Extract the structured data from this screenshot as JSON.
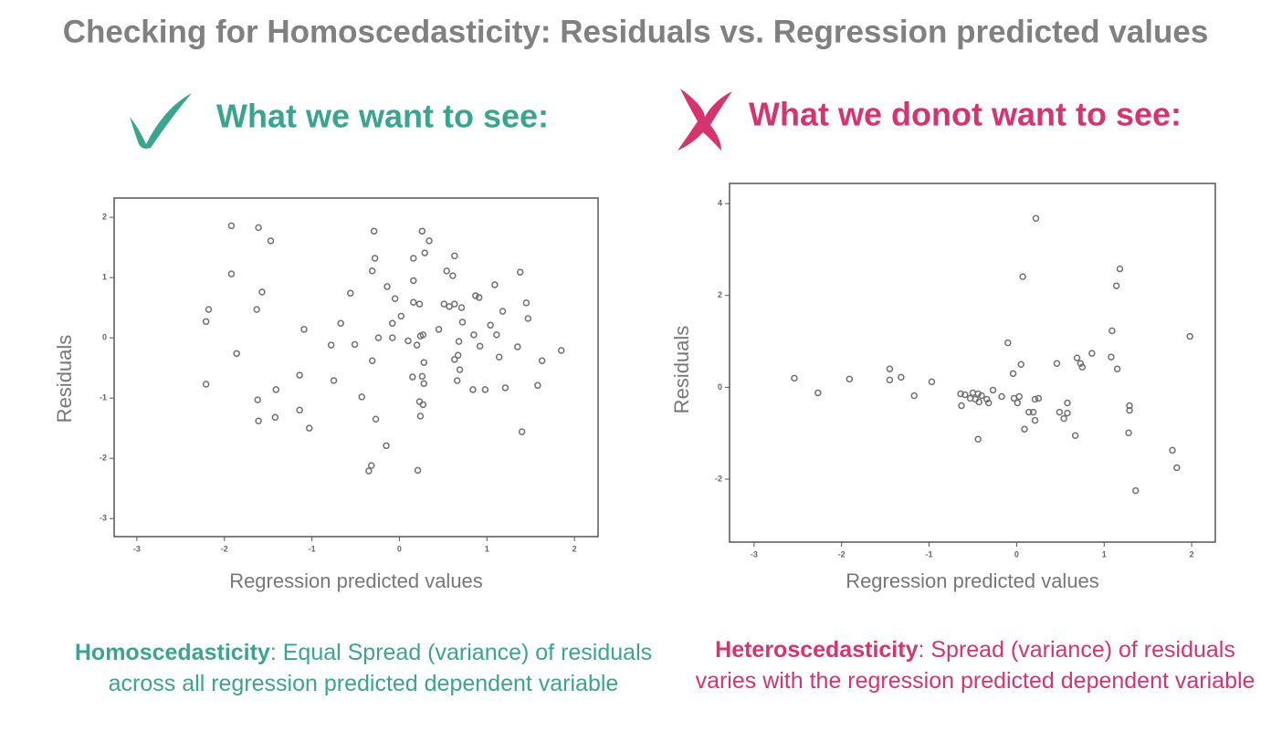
{
  "title": "Checking for Homoscedasticity: Residuals vs. Regression predicted values",
  "chart_data": [
    {
      "type": "scatter",
      "heading": "What we want to see:",
      "color": "#3aa58f",
      "marker_color": "#707070",
      "xlabel": "Regression predicted values",
      "ylabel": "Residuals",
      "caption_term": "Homoscedasticity",
      "caption_text": ": Equal Spread (variance) of residuals across all regression predicted dependent variable",
      "xlim": [
        -3.26,
        2.27
      ],
      "ylim": [
        -3.3,
        2.32
      ],
      "xticks": [
        -3,
        -2,
        -1,
        0,
        1,
        2
      ],
      "yticks": [
        -3,
        -2,
        -1,
        0,
        1,
        2
      ],
      "x": [
        -1.92,
        -1.61,
        -1.47,
        -1.92,
        -1.57,
        -2.18,
        -1.63,
        -2.21,
        -1.86,
        -2.21,
        -1.62,
        -1.41,
        -1.61,
        -1.42,
        -1.14,
        -1.09,
        -1.14,
        -1.03,
        -0.78,
        -0.75,
        -0.67,
        -0.56,
        -0.51,
        -0.43,
        -0.29,
        -0.28,
        -0.31,
        -0.31,
        -0.27,
        -0.24,
        -0.35,
        -0.32,
        -0.15,
        -0.14,
        -0.08,
        -0.05,
        0.02,
        -0.08,
        0.1,
        0.16,
        0.16,
        0.16,
        0.23,
        0.2,
        0.15,
        0.24,
        0.26,
        0.29,
        0.34,
        0.28,
        0.26,
        0.28,
        0.23,
        0.27,
        0.24,
        0.21,
        0.27,
        0.45,
        0.54,
        0.51,
        0.57,
        0.61,
        0.63,
        0.63,
        0.63,
        0.67,
        0.69,
        0.66,
        0.68,
        0.72,
        0.71,
        0.87,
        0.91,
        0.84,
        0.85,
        0.92,
        0.98,
        1.04,
        1.09,
        1.11,
        1.14,
        1.18,
        1.21,
        1.35,
        1.38,
        1.4,
        1.45,
        1.47,
        1.58,
        1.63,
        1.85
      ],
      "y": [
        1.86,
        1.83,
        1.61,
        1.06,
        0.76,
        0.47,
        0.47,
        0.27,
        -0.26,
        -0.77,
        -1.03,
        -0.86,
        -1.38,
        -1.32,
        -0.62,
        0.14,
        -1.2,
        -1.5,
        -0.12,
        -0.71,
        0.24,
        0.74,
        -0.11,
        -0.98,
        1.77,
        1.32,
        1.11,
        -0.38,
        -1.35,
        0.0,
        -2.21,
        -2.12,
        -1.79,
        0.85,
        0.24,
        0.65,
        0.36,
        0.0,
        -0.05,
        1.32,
        0.95,
        0.59,
        0.56,
        -0.12,
        -0.65,
        0.03,
        1.77,
        1.41,
        1.61,
        -0.41,
        -0.64,
        -0.76,
        -1.06,
        -1.11,
        -1.3,
        -2.2,
        0.05,
        0.14,
        1.11,
        0.56,
        0.52,
        1.03,
        0.56,
        1.36,
        -0.36,
        -0.29,
        -0.53,
        -0.71,
        -0.06,
        0.26,
        0.5,
        0.7,
        0.67,
        -0.86,
        0.05,
        -0.14,
        -0.86,
        0.21,
        0.88,
        0.05,
        -0.32,
        0.44,
        -0.83,
        -0.15,
        1.09,
        -1.56,
        0.58,
        0.32,
        -0.79,
        -0.38,
        -0.21
      ]
    },
    {
      "type": "scatter",
      "heading": "What we donot want to see:",
      "color": "#d6336f",
      "marker_color": "#707070",
      "xlabel": "Regression predicted values",
      "ylabel": "Residuals",
      "caption_term": "Heteroscedasticity",
      "caption_text": ": Spread (variance) of residuals varies with the regression predicted dependent variable",
      "xlim": [
        -3.28,
        2.27
      ],
      "ylim": [
        -3.37,
        4.44
      ],
      "xticks": [
        -3,
        -2,
        -1,
        0,
        1,
        2
      ],
      "yticks": [
        -2,
        0,
        2,
        4
      ],
      "x": [
        -2.54,
        -2.27,
        -1.91,
        -1.45,
        -1.45,
        -1.32,
        -1.17,
        -0.97,
        -0.64,
        -0.63,
        -0.59,
        -0.53,
        -0.5,
        -0.47,
        -0.44,
        -0.44,
        -0.4,
        -0.43,
        -0.34,
        -0.32,
        -0.27,
        -0.17,
        -0.1,
        -0.04,
        -0.03,
        0.01,
        0.03,
        0.05,
        0.07,
        0.09,
        0.14,
        0.19,
        0.21,
        0.21,
        0.25,
        0.22,
        0.46,
        0.49,
        0.54,
        0.58,
        0.58,
        0.67,
        0.69,
        0.73,
        0.75,
        0.86,
        1.08,
        1.09,
        1.14,
        1.18,
        1.15,
        1.29,
        1.29,
        1.28,
        1.36,
        1.78,
        1.83,
        1.98
      ],
      "y": [
        0.2,
        -0.12,
        0.18,
        0.4,
        0.16,
        0.22,
        -0.18,
        0.12,
        -0.14,
        -0.4,
        -0.16,
        -0.24,
        -0.12,
        -0.26,
        -0.14,
        -1.13,
        -0.18,
        -0.32,
        -0.26,
        -0.34,
        -0.06,
        -0.2,
        0.97,
        0.3,
        -0.24,
        -0.34,
        -0.2,
        0.5,
        2.41,
        -0.91,
        -0.54,
        -0.54,
        -0.72,
        -0.26,
        -0.24,
        3.68,
        0.52,
        -0.54,
        -0.68,
        -0.34,
        -0.56,
        -1.05,
        0.64,
        0.52,
        0.44,
        0.74,
        0.66,
        1.23,
        2.21,
        2.58,
        0.4,
        -0.4,
        -0.5,
        -0.99,
        -2.25,
        -1.37,
        -1.75,
        1.11
      ]
    }
  ]
}
